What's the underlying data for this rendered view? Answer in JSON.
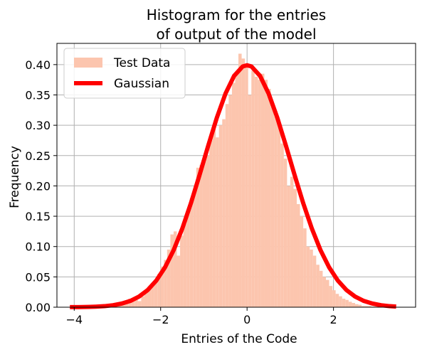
{
  "chart_data": {
    "type": "bar",
    "title_lines": [
      "Histogram for the entries",
      "of output of the model"
    ],
    "xlabel": "Entries of the Code",
    "ylabel": "Frequency",
    "xlim": [
      -4.4,
      3.9
    ],
    "ylim": [
      0,
      0.435
    ],
    "x_ticks": [
      -4,
      -2,
      0,
      2
    ],
    "x_tick_labels": [
      "−4",
      "−2",
      "0",
      "2"
    ],
    "y_ticks": [
      0.0,
      0.05,
      0.1,
      0.15,
      0.2,
      0.25,
      0.3,
      0.35,
      0.4
    ],
    "y_tick_labels": [
      "0.00",
      "0.05",
      "0.10",
      "0.15",
      "0.20",
      "0.25",
      "0.30",
      "0.35",
      "0.40"
    ],
    "grid": true,
    "legend_position": "top-left",
    "series": [
      {
        "name": "Test Data",
        "type": "histogram",
        "color": "#fcc5ae",
        "bin_start": -4.1,
        "bin_width": 0.075,
        "values": [
          0.0,
          0.0,
          0.0,
          0.0,
          0.0,
          0.0,
          0.0,
          0.0,
          0.0,
          0.001,
          0.001,
          0.001,
          0.002,
          0.002,
          0.003,
          0.004,
          0.006,
          0.008,
          0.014,
          0.012,
          0.012,
          0.01,
          0.018,
          0.024,
          0.032,
          0.036,
          0.043,
          0.055,
          0.067,
          0.078,
          0.095,
          0.12,
          0.125,
          0.085,
          0.118,
          0.137,
          0.16,
          0.18,
          0.19,
          0.23,
          0.235,
          0.24,
          0.25,
          0.275,
          0.295,
          0.28,
          0.3,
          0.31,
          0.335,
          0.35,
          0.37,
          0.385,
          0.418,
          0.41,
          0.4,
          0.35,
          0.39,
          0.38,
          0.375,
          0.385,
          0.375,
          0.36,
          0.33,
          0.315,
          0.305,
          0.27,
          0.245,
          0.2,
          0.215,
          0.195,
          0.17,
          0.15,
          0.13,
          0.1,
          0.095,
          0.085,
          0.07,
          0.06,
          0.05,
          0.045,
          0.035,
          0.028,
          0.022,
          0.018,
          0.014,
          0.012,
          0.009,
          0.007,
          0.005,
          0.004,
          0.002,
          0.002,
          0.002,
          0.001,
          0.001,
          0.001,
          0.0,
          0.0,
          0.0,
          0.0
        ]
      },
      {
        "name": "Gaussian",
        "type": "line",
        "color": "#ff0000",
        "x": [
          -4.1,
          -3.9,
          -3.7,
          -3.5,
          -3.3,
          -3.1,
          -2.9,
          -2.7,
          -2.5,
          -2.3,
          -2.1,
          -1.9,
          -1.7,
          -1.5,
          -1.3,
          -1.1,
          -0.9,
          -0.7,
          -0.5,
          -0.3,
          -0.1,
          0.0,
          0.1,
          0.3,
          0.5,
          0.7,
          0.9,
          1.1,
          1.3,
          1.5,
          1.7,
          1.9,
          2.1,
          2.3,
          2.5,
          2.7,
          2.9,
          3.1,
          3.3,
          3.45
        ],
        "y": [
          0.0001,
          0.0002,
          0.0004,
          0.0009,
          0.0017,
          0.0033,
          0.006,
          0.0104,
          0.0175,
          0.0283,
          0.044,
          0.0656,
          0.094,
          0.1295,
          0.1714,
          0.2179,
          0.2661,
          0.3123,
          0.3521,
          0.3814,
          0.397,
          0.3989,
          0.397,
          0.3814,
          0.3521,
          0.3123,
          0.2661,
          0.2179,
          0.1714,
          0.1295,
          0.094,
          0.0656,
          0.044,
          0.0283,
          0.0175,
          0.0104,
          0.006,
          0.0033,
          0.0017,
          0.001
        ]
      }
    ]
  }
}
